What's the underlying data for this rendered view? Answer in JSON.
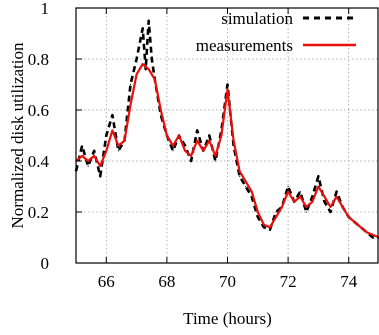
{
  "chart_data": {
    "type": "line",
    "title": "",
    "xlabel": "Time (hours)",
    "ylabel": "Normalized disk utilization",
    "xlim": [
      65,
      75
    ],
    "ylim": [
      0,
      1
    ],
    "xticks": [
      66,
      68,
      70,
      72,
      74
    ],
    "yticks": [
      0,
      0.2,
      0.4,
      0.6,
      0.8,
      1
    ],
    "xtick_labels": [
      "66",
      "68",
      "70",
      "72",
      "74"
    ],
    "ytick_labels": [
      "0",
      "0.2",
      "0.4",
      "0.6",
      "0.8",
      "1"
    ],
    "grid": true,
    "legend_position": "top-right",
    "series": [
      {
        "name": "simulation",
        "color": "#000000",
        "dash": "dashed",
        "x": [
          65.0,
          65.2,
          65.4,
          65.6,
          65.8,
          66.0,
          66.2,
          66.4,
          66.6,
          66.8,
          67.0,
          67.2,
          67.3,
          67.4,
          67.5,
          67.6,
          67.8,
          68.0,
          68.2,
          68.4,
          68.6,
          68.8,
          69.0,
          69.2,
          69.4,
          69.6,
          69.8,
          70.0,
          70.2,
          70.4,
          70.6,
          70.8,
          71.0,
          71.2,
          71.4,
          71.6,
          71.8,
          72.0,
          72.2,
          72.4,
          72.6,
          72.8,
          73.0,
          73.2,
          73.4,
          73.6,
          73.8,
          74.0,
          74.2,
          74.4,
          74.6,
          74.8,
          75.0
        ],
        "y": [
          0.36,
          0.46,
          0.38,
          0.44,
          0.34,
          0.5,
          0.58,
          0.44,
          0.48,
          0.7,
          0.8,
          0.92,
          0.76,
          0.95,
          0.8,
          0.72,
          0.58,
          0.5,
          0.44,
          0.5,
          0.46,
          0.4,
          0.52,
          0.44,
          0.5,
          0.4,
          0.52,
          0.7,
          0.46,
          0.34,
          0.3,
          0.26,
          0.18,
          0.14,
          0.13,
          0.2,
          0.22,
          0.3,
          0.24,
          0.28,
          0.2,
          0.26,
          0.34,
          0.24,
          0.2,
          0.28,
          0.22,
          0.18,
          0.16,
          0.14,
          0.12,
          0.1,
          0.1
        ]
      },
      {
        "name": "measurements",
        "color": "#e8100c",
        "dash": "solid",
        "x": [
          65.0,
          65.2,
          65.4,
          65.6,
          65.8,
          66.0,
          66.2,
          66.4,
          66.6,
          66.8,
          67.0,
          67.2,
          67.4,
          67.6,
          67.8,
          68.0,
          68.2,
          68.4,
          68.6,
          68.8,
          69.0,
          69.2,
          69.4,
          69.6,
          69.8,
          70.0,
          70.2,
          70.4,
          70.6,
          70.8,
          71.0,
          71.2,
          71.4,
          71.6,
          71.8,
          72.0,
          72.2,
          72.4,
          72.6,
          72.8,
          73.0,
          73.2,
          73.4,
          73.6,
          73.8,
          74.0,
          74.2,
          74.4,
          74.6,
          74.8,
          75.0
        ],
        "y": [
          0.4,
          0.42,
          0.4,
          0.42,
          0.38,
          0.44,
          0.52,
          0.46,
          0.48,
          0.62,
          0.74,
          0.78,
          0.76,
          0.72,
          0.6,
          0.5,
          0.46,
          0.5,
          0.44,
          0.42,
          0.48,
          0.44,
          0.48,
          0.42,
          0.5,
          0.68,
          0.48,
          0.36,
          0.32,
          0.28,
          0.2,
          0.15,
          0.14,
          0.18,
          0.22,
          0.28,
          0.24,
          0.26,
          0.22,
          0.24,
          0.3,
          0.26,
          0.22,
          0.26,
          0.22,
          0.18,
          0.16,
          0.14,
          0.12,
          0.11,
          0.1
        ]
      }
    ]
  }
}
